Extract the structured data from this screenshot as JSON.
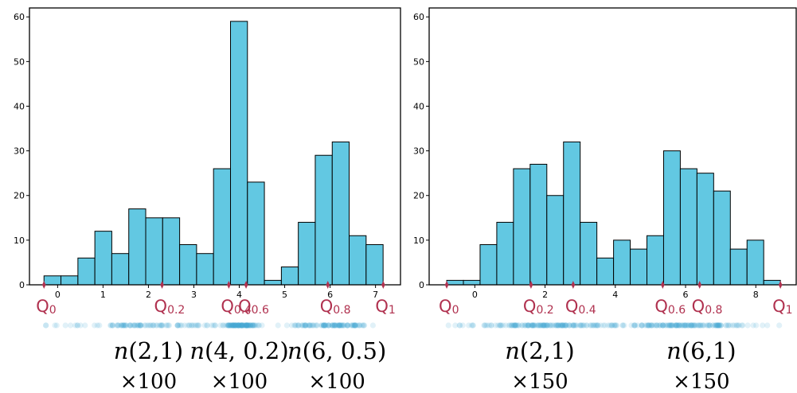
{
  "colors": {
    "bar_fill": "#62c8e2",
    "bar_edge": "#000000",
    "quantile": "#b0314f",
    "points": "#43a9d4"
  },
  "chart_data": [
    {
      "type": "bar",
      "subtype": "histogram",
      "title": "",
      "xlabel": "",
      "ylabel": "",
      "bin_edges": [
        -0.3,
        0.073,
        0.447,
        0.82,
        1.193,
        1.567,
        1.94,
        2.313,
        2.687,
        3.06,
        3.433,
        3.807,
        4.18,
        4.553,
        4.927,
        5.3,
        5.673,
        6.047,
        6.42,
        6.793,
        7.167
      ],
      "values": [
        2,
        2,
        6,
        12,
        7,
        17,
        15,
        15,
        9,
        7,
        26,
        59,
        23,
        1,
        4,
        14,
        29,
        32,
        11,
        9
      ],
      "xlim": [
        -0.62,
        7.55
      ],
      "ylim": [
        0,
        62
      ],
      "xticks": [
        0,
        1,
        2,
        3,
        4,
        5,
        6,
        7
      ],
      "xtick_labels": [
        "0",
        "1",
        "2",
        "3",
        "4",
        "5",
        "6",
        "7"
      ],
      "yticks": [
        0,
        10,
        20,
        30,
        40,
        50,
        60
      ],
      "ytick_labels": [
        "0",
        "10",
        "20",
        "30",
        "40",
        "50",
        "60"
      ],
      "quantiles": [
        {
          "main": "Q",
          "sub": "0",
          "value": -0.3
        },
        {
          "main": "Q",
          "sub": "0.2",
          "value": 2.3
        },
        {
          "main": "Q",
          "sub": "0.4",
          "value": 3.77
        },
        {
          "main": "Q",
          "sub": "0.6",
          "value": 4.15
        },
        {
          "main": "Q",
          "sub": "0.8",
          "value": 5.95
        },
        {
          "main": "Q",
          "sub": "1",
          "value": 7.17
        }
      ],
      "point_clusters": [
        {
          "center": 2,
          "sd": 1,
          "n": 100
        },
        {
          "center": 4,
          "sd": 0.2,
          "n": 100
        },
        {
          "center": 6,
          "sd": 0.5,
          "n": 100
        }
      ],
      "mixture_labels": [
        {
          "n": "n",
          "params": "(2,1)",
          "mult": "×100",
          "at": 2.0
        },
        {
          "n": "n",
          "params": "(4, 0.2)",
          "mult": "×100",
          "at": 4.0
        },
        {
          "n": "n",
          "params": "(6, 0.5)",
          "mult": "×100",
          "at": 6.15
        }
      ]
    },
    {
      "type": "bar",
      "subtype": "histogram",
      "title": "",
      "xlabel": "",
      "ylabel": "",
      "bin_edges": [
        -0.8,
        -0.325,
        0.15,
        0.625,
        1.1,
        1.575,
        2.05,
        2.525,
        3.0,
        3.475,
        3.95,
        4.425,
        4.9,
        5.375,
        5.85,
        6.325,
        6.8,
        7.275,
        7.75,
        8.225,
        8.7
      ],
      "values": [
        1,
        1,
        9,
        14,
        26,
        27,
        20,
        32,
        14,
        6,
        10,
        8,
        11,
        30,
        26,
        25,
        21,
        8,
        10,
        1
      ],
      "xlim": [
        -1.3,
        9.15
      ],
      "ylim": [
        0,
        62
      ],
      "xticks": [
        0,
        2,
        4,
        6,
        8
      ],
      "xtick_labels": [
        "0",
        "2",
        "4",
        "6",
        "8"
      ],
      "yticks": [
        0,
        10,
        20,
        30,
        40,
        50,
        60
      ],
      "ytick_labels": [
        "0",
        "10",
        "20",
        "30",
        "40",
        "50",
        "60"
      ],
      "quantiles": [
        {
          "main": "Q",
          "sub": "0",
          "value": -0.8
        },
        {
          "main": "Q",
          "sub": "0.2",
          "value": 1.6
        },
        {
          "main": "Q",
          "sub": "0.4",
          "value": 2.8
        },
        {
          "main": "Q",
          "sub": "0.6",
          "value": 5.35
        },
        {
          "main": "Q",
          "sub": "0.8",
          "value": 6.4
        },
        {
          "main": "Q",
          "sub": "1",
          "value": 8.7
        }
      ],
      "point_clusters": [
        {
          "center": 2,
          "sd": 1,
          "n": 150
        },
        {
          "center": 6,
          "sd": 1,
          "n": 150
        }
      ],
      "mixture_labels": [
        {
          "n": "n",
          "params": "(2,1)",
          "mult": "×150",
          "at": 1.85
        },
        {
          "n": "n",
          "params": "(6,1)",
          "mult": "×150",
          "at": 6.45
        }
      ]
    }
  ]
}
